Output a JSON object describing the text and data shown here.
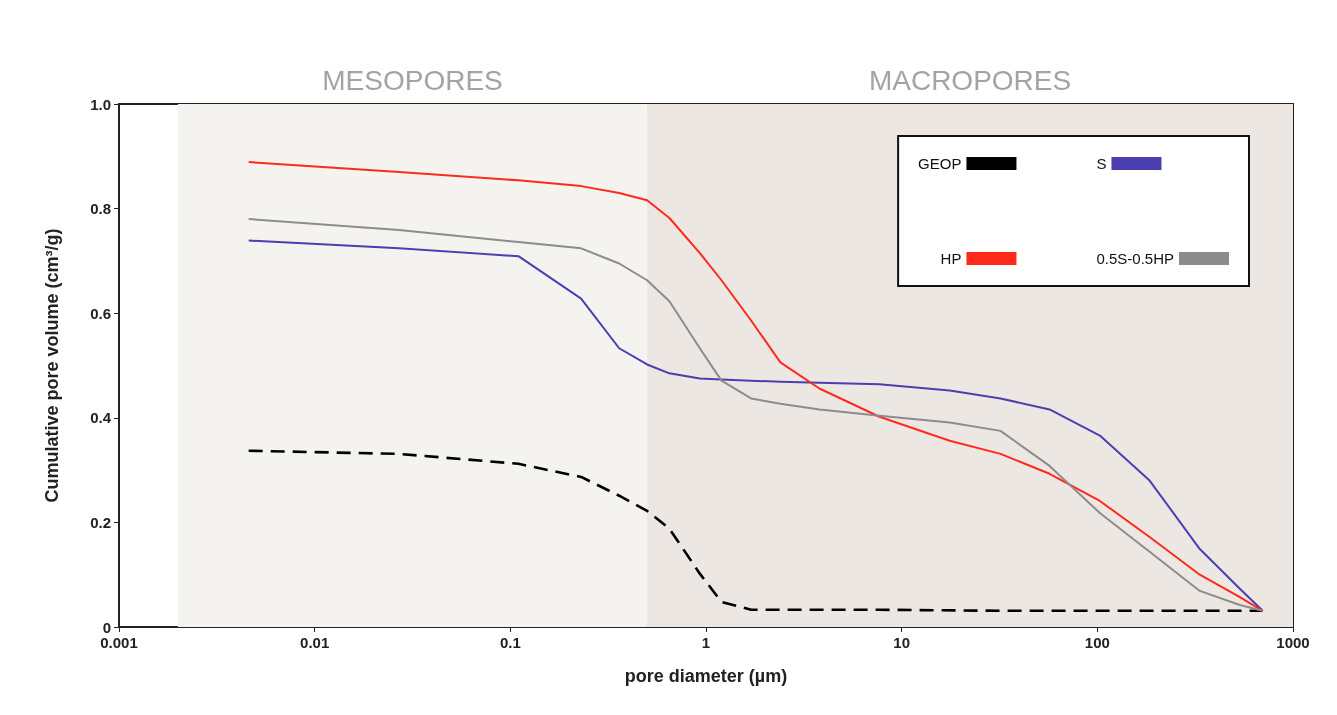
{
  "chart_data": {
    "type": "line",
    "xlabel": "pore diameter (µm)",
    "ylabel": "Cumulative pore volume (cm³/g)",
    "log": "x",
    "xlim": [
      0.001,
      1000
    ],
    "xticks": [
      0.001,
      0.01,
      0.1,
      1,
      10,
      100,
      1000
    ],
    "ylim": [
      0,
      1
    ],
    "yticks": [
      0,
      0.2,
      0.4,
      0.6,
      0.8,
      {
        "value": 1,
        "label": "1.0"
      }
    ],
    "grid": false,
    "legend": "top right",
    "marker": "none",
    "bands": [
      {
        "axis": "x",
        "from": 0.002,
        "to": 0.5,
        "label": "MESOPORES",
        "color": "#f5f3f0"
      },
      {
        "axis": "x",
        "from": 0.5,
        "to": 1000,
        "label": "MACROPORES",
        "color": "#ede7e4"
      }
    ],
    "series": [
      {
        "name": "GEOP",
        "color": "#000000",
        "line_style": "dashed",
        "x": [
          0.0046,
          0.027,
          0.11,
          0.23,
          0.36,
          0.5,
          0.65,
          0.93,
          1.2,
          1.7,
          7.7,
          32,
          700
        ],
        "values": [
          0.337,
          0.331,
          0.312,
          0.287,
          0.251,
          0.222,
          0.188,
          0.102,
          0.048,
          0.033,
          0.033,
          0.031,
          0.031
        ]
      },
      {
        "name": "S",
        "color": "#4b3fb0",
        "line_style": "solid",
        "x": [
          0.0046,
          0.027,
          0.11,
          0.23,
          0.36,
          0.5,
          0.65,
          0.93,
          1.2,
          1.7,
          2.4,
          3.8,
          7.7,
          17.6,
          32,
          57,
          103,
          185,
          334,
          535,
          700
        ],
        "values": [
          0.739,
          0.724,
          0.709,
          0.628,
          0.533,
          0.502,
          0.485,
          0.475,
          0.473,
          0.471,
          0.469,
          0.467,
          0.464,
          0.452,
          0.437,
          0.416,
          0.366,
          0.28,
          0.149,
          0.073,
          0.031
        ]
      },
      {
        "name": "HP",
        "color": "#ff2a1a",
        "line_style": "solid",
        "x": [
          0.0046,
          0.027,
          0.11,
          0.23,
          0.36,
          0.5,
          0.65,
          0.93,
          1.2,
          1.7,
          2.4,
          3.8,
          7.7,
          17.6,
          32,
          57,
          103,
          185,
          334,
          535,
          700
        ],
        "values": [
          0.889,
          0.87,
          0.854,
          0.843,
          0.83,
          0.816,
          0.782,
          0.715,
          0.663,
          0.586,
          0.506,
          0.456,
          0.402,
          0.356,
          0.331,
          0.293,
          0.241,
          0.172,
          0.1,
          0.057,
          0.031
        ]
      },
      {
        "name": "0.5S-0.5HP",
        "color": "#8c8c8c",
        "line_style": "solid",
        "x": [
          0.0046,
          0.027,
          0.11,
          0.23,
          0.36,
          0.5,
          0.65,
          0.93,
          1.2,
          1.7,
          2.4,
          3.8,
          7.7,
          17.6,
          32,
          57,
          103,
          185,
          334,
          535,
          700
        ],
        "values": [
          0.78,
          0.759,
          0.736,
          0.724,
          0.695,
          0.663,
          0.623,
          0.533,
          0.471,
          0.437,
          0.427,
          0.416,
          0.404,
          0.391,
          0.375,
          0.308,
          0.218,
          0.144,
          0.069,
          0.042,
          0.031
        ]
      }
    ]
  }
}
